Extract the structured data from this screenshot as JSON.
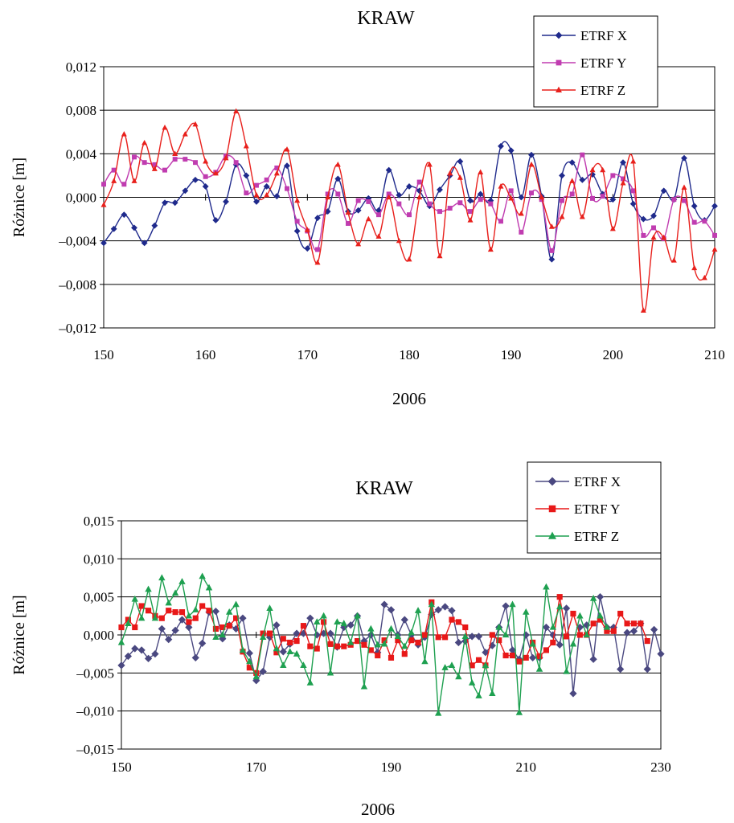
{
  "chart_data": [
    {
      "type": "line",
      "title": "KRAW",
      "xlabel": "2006",
      "ylabel": "Różnice [m]",
      "xlim": [
        150,
        210
      ],
      "ylim": [
        -0.012,
        0.012
      ],
      "xticks": [
        "150",
        "160",
        "170",
        "180",
        "190",
        "200",
        "210"
      ],
      "yticks": [
        "0,012",
        "0,008",
        "0,004",
        "0,000",
        "–0,004",
        "–0,008",
        "–0,012"
      ],
      "ytick_values": [
        0.012,
        0.008,
        0.004,
        0.0,
        -0.004,
        -0.008,
        -0.012
      ],
      "xtick_values": [
        150,
        160,
        170,
        180,
        190,
        200,
        210
      ],
      "grid": "horizontal",
      "legend_placement": "top-right",
      "smooth": true,
      "x_start": 150,
      "series": [
        {
          "name": "ETRF X",
          "color": "#1f2a8c",
          "marker": "diamond",
          "values": [
            -0.0042,
            -0.0029,
            -0.0016,
            -0.0028,
            -0.0042,
            -0.0026,
            -0.0005,
            -0.0005,
            0.0006,
            0.0016,
            0.001,
            -0.0021,
            -0.0004,
            0.003,
            0.002,
            -0.0004,
            0.001,
            0.0001,
            0.0029,
            -0.0031,
            -0.0047,
            -0.0019,
            -0.0013,
            0.0017,
            -0.0013,
            -0.0012,
            -0.0001,
            -0.0012,
            0.0025,
            0.0002,
            0.001,
            0.0006,
            -0.0008,
            0.0007,
            0.002,
            0.0033,
            -0.0003,
            0.0003,
            -0.0003,
            0.0047,
            0.0043,
            0.0,
            0.0039,
            0.0001,
            -0.0057,
            0.002,
            0.0032,
            0.0016,
            0.0021,
            0.0003,
            -0.0002,
            0.0032,
            -0.0006,
            -0.002,
            -0.0017,
            0.0006,
            -0.0002,
            0.0036,
            -0.0008,
            -0.0021,
            -0.0008
          ]
        },
        {
          "name": "ETRF Y",
          "color": "#c03cb0",
          "marker": "square",
          "values": [
            0.0012,
            0.0025,
            0.0012,
            0.0037,
            0.0032,
            0.003,
            0.0025,
            0.0035,
            0.0035,
            0.0032,
            0.0019,
            0.0023,
            0.0038,
            0.0032,
            0.0004,
            0.0011,
            0.0016,
            0.0027,
            0.0008,
            -0.0022,
            -0.0031,
            -0.0048,
            0.0003,
            0.0003,
            -0.0024,
            -0.0003,
            -0.0004,
            -0.0016,
            0.0003,
            -0.0006,
            -0.0016,
            0.0014,
            -0.0006,
            -0.0013,
            -0.001,
            -0.0005,
            -0.0013,
            -0.0002,
            -0.0006,
            -0.0022,
            0.0006,
            -0.0032,
            0.0004,
            -0.0002,
            -0.0049,
            -0.0003,
            0.0003,
            0.0039,
            -0.0001,
            0.0001,
            0.002,
            0.0017,
            0.0006,
            -0.0035,
            -0.0028,
            -0.0038,
            -0.0002,
            -0.0003,
            -0.0023,
            -0.0022,
            -0.0035
          ]
        },
        {
          "name": "ETRF Z",
          "color": "#e8201c",
          "marker": "triangle",
          "values": [
            -0.0007,
            0.0015,
            0.0058,
            0.0015,
            0.005,
            0.0026,
            0.0064,
            0.004,
            0.0058,
            0.0067,
            0.0033,
            0.0022,
            0.0036,
            0.0079,
            0.0047,
            0.0002,
            0.0002,
            0.0022,
            0.0044,
            -0.0003,
            -0.003,
            -0.006,
            0.0,
            0.003,
            -0.0014,
            -0.0043,
            -0.002,
            -0.0036,
            0.0,
            -0.004,
            -0.0057,
            0.0,
            0.003,
            -0.0054,
            0.0022,
            0.0018,
            -0.0021,
            0.0023,
            -0.0048,
            0.001,
            -0.0001,
            -0.0015,
            0.003,
            0.0,
            -0.0027,
            -0.0018,
            0.0015,
            -0.0018,
            0.0025,
            0.0025,
            -0.0029,
            0.0013,
            0.0033,
            -0.0104,
            -0.0037,
            -0.0037,
            -0.0058,
            0.0009,
            -0.0065,
            -0.0074,
            -0.0048
          ]
        }
      ]
    },
    {
      "type": "line",
      "title": "KRAW",
      "xlabel": "2006",
      "ylabel": "Różnice [m]",
      "xlim": [
        150,
        230
      ],
      "ylim": [
        -0.015,
        0.015
      ],
      "xticks": [
        "150",
        "170",
        "190",
        "210",
        "230"
      ],
      "yticks": [
        "0,015",
        "0,010",
        "0,005",
        "0,000",
        "–0,005",
        "–0,010",
        "–0,015"
      ],
      "ytick_values": [
        0.015,
        0.01,
        0.005,
        0.0,
        -0.005,
        -0.01,
        -0.015
      ],
      "xtick_values": [
        150,
        170,
        190,
        210,
        230
      ],
      "grid": "horizontal",
      "legend_placement": "top-right",
      "smooth": false,
      "x_start": 150,
      "series": [
        {
          "name": "ETRF X",
          "color": "#4a4880",
          "marker": "diamond",
          "values": [
            -0.004,
            -0.0028,
            -0.0018,
            -0.002,
            -0.0031,
            -0.0025,
            0.0008,
            -0.0006,
            0.0006,
            0.002,
            0.001,
            -0.003,
            -0.0011,
            0.003,
            0.0031,
            -0.0005,
            0.0013,
            0.0008,
            0.0022,
            -0.0024,
            -0.006,
            -0.0048,
            -0.0003,
            0.0013,
            -0.0022,
            -0.0012,
            0.0002,
            0.0002,
            0.0022,
            0.0,
            0.0002,
            0.0002,
            -0.0016,
            0.001,
            0.0013,
            0.0025,
            -0.0008,
            0.0,
            -0.0023,
            0.004,
            0.0033,
            0.0,
            0.002,
            0.0,
            -0.0013,
            -0.0003,
            0.0027,
            0.0033,
            0.0037,
            0.0032,
            -0.001,
            -0.0008,
            -0.0002,
            -0.0002,
            -0.0023,
            -0.0014,
            0.001,
            0.0038,
            -0.002,
            -0.0032,
            0.0,
            -0.003,
            -0.003,
            0.001,
            0.0,
            -0.0013,
            0.0035,
            -0.0077,
            0.001,
            0.0013,
            -0.0032,
            0.005,
            0.001,
            0.001,
            -0.0045,
            0.0003,
            0.0005,
            0.0015,
            -0.0045,
            0.0007,
            -0.0025
          ]
        },
        {
          "name": "ETRF Y",
          "color": "#e81818",
          "marker": "square",
          "values": [
            0.001,
            0.002,
            0.001,
            0.0038,
            0.0032,
            0.0025,
            0.0022,
            0.0032,
            0.003,
            0.003,
            0.0017,
            0.0022,
            0.0038,
            0.0032,
            0.0008,
            0.001,
            0.0012,
            0.0022,
            -0.0022,
            -0.0043,
            -0.005,
            0.0002,
            0.0002,
            -0.0023,
            -0.0005,
            -0.001,
            -0.0008,
            0.0012,
            -0.0015,
            -0.0018,
            0.0017,
            -0.0012,
            -0.0015,
            -0.0015,
            -0.0013,
            -0.0008,
            -0.0013,
            -0.002,
            -0.0027,
            -0.0007,
            -0.003,
            -0.0007,
            -0.0025,
            -0.0007,
            -0.001,
            0.0,
            0.0043,
            -0.0003,
            -0.0003,
            0.002,
            0.0017,
            0.001,
            -0.004,
            -0.0033,
            -0.004,
            0.0,
            -0.0007,
            -0.0027,
            -0.0027,
            -0.0035,
            -0.003,
            -0.001,
            -0.0028,
            -0.002,
            -0.001,
            0.005,
            -0.0002,
            0.0028,
            0.0,
            0.0,
            0.0015,
            0.002,
            0.0005,
            0.0005,
            0.0028,
            0.0015,
            0.0015,
            0.0015,
            -0.0008
          ]
        },
        {
          "name": "ETRF Z",
          "color": "#1ea050",
          "marker": "triangle",
          "values": [
            -0.001,
            0.0015,
            0.0047,
            0.0022,
            0.006,
            0.0022,
            0.0075,
            0.0042,
            0.0055,
            0.007,
            0.0025,
            0.0033,
            0.0077,
            0.0062,
            -0.0003,
            0.0,
            0.003,
            0.004,
            -0.002,
            -0.0035,
            -0.0055,
            -0.0003,
            0.0035,
            -0.0018,
            -0.004,
            -0.0022,
            -0.0025,
            -0.004,
            -0.0063,
            0.0017,
            0.0025,
            -0.005,
            0.0017,
            0.0015,
            -0.001,
            0.0025,
            -0.0068,
            0.0008,
            -0.0013,
            -0.0012,
            0.0008,
            -0.0002,
            -0.0015,
            0.0003,
            0.0032,
            -0.0035,
            0.004,
            -0.0103,
            -0.0043,
            -0.004,
            -0.0055,
            -0.0002,
            -0.0063,
            -0.008,
            -0.004,
            -0.0077,
            0.001,
            0.0,
            0.004,
            -0.0102,
            0.003,
            -0.0012,
            -0.0045,
            0.0063,
            0.001,
            0.0037,
            -0.0048,
            -0.0012,
            0.0025,
            0.0,
            0.0048,
            0.0025,
            0.001
          ]
        }
      ]
    }
  ]
}
